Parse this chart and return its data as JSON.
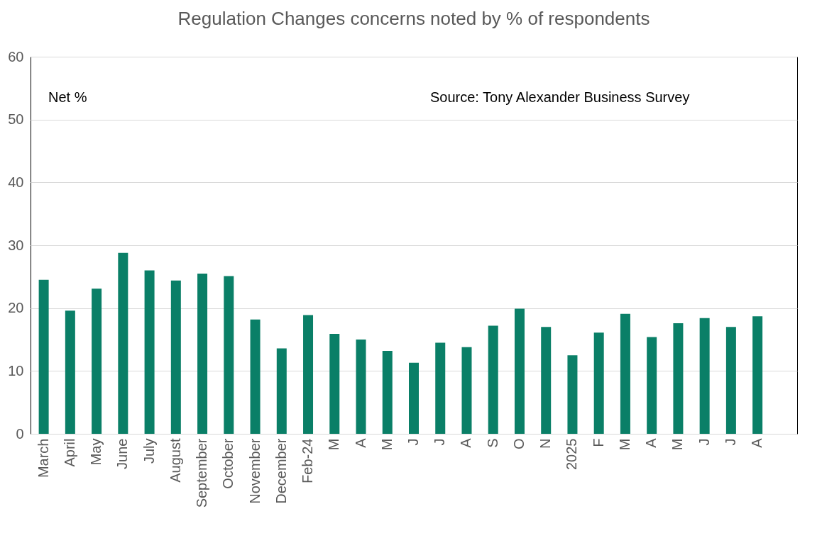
{
  "chart_data": {
    "type": "bar",
    "title": "Regulation Changes concerns noted by % of respondents",
    "categories": [
      "March",
      "April",
      "May",
      "June",
      "July",
      "August",
      "September",
      "October",
      "November",
      "December",
      "Feb-24",
      "M",
      "A",
      "M",
      "J",
      "J",
      "A",
      "S",
      "O",
      "N",
      "2025",
      "F",
      "M",
      "A",
      "M",
      "J",
      "J",
      "A",
      null
    ],
    "values": [
      24.5,
      19.6,
      23.1,
      28.8,
      26.0,
      24.4,
      25.5,
      25.1,
      18.2,
      13.6,
      18.9,
      15.9,
      15.0,
      13.2,
      11.3,
      14.5,
      13.8,
      17.2,
      19.9,
      17.0,
      12.5,
      16.1,
      19.1,
      15.4,
      17.6,
      18.4,
      17.0,
      18.7,
      null
    ],
    "color": "#0a7f67",
    "ylim": [
      0,
      60
    ],
    "yticks": [
      0,
      10,
      20,
      30,
      40,
      50,
      60
    ],
    "grid": "y",
    "annotations": [
      "Net %",
      "Source: Tony Alexander Business Survey"
    ]
  }
}
